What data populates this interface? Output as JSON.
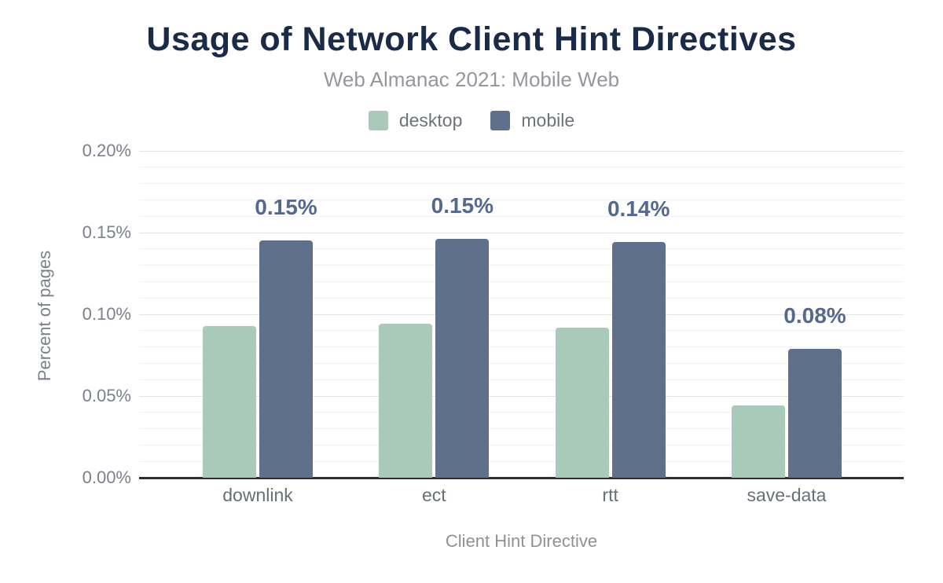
{
  "chart_data": {
    "type": "bar",
    "title": "Usage of Network Client Hint Directives",
    "subtitle": "Web Almanac 2021: Mobile Web",
    "xlabel": "Client Hint Directive",
    "ylabel": "Percent of pages",
    "categories": [
      "downlink",
      "ect",
      "rtt",
      "save-data"
    ],
    "series": [
      {
        "name": "desktop",
        "color": "#a9cab9",
        "values": [
          0.093,
          0.094,
          0.092,
          0.044
        ]
      },
      {
        "name": "mobile",
        "color": "#5e708c",
        "values": [
          0.145,
          0.146,
          0.144,
          0.079
        ],
        "data_labels": [
          "0.15%",
          "0.15%",
          "0.14%",
          "0.08%"
        ]
      }
    ],
    "ylim": [
      0,
      0.2
    ],
    "yticks": {
      "values": [
        0,
        0.05,
        0.1,
        0.15,
        0.2
      ],
      "labels": [
        "0.00%",
        "0.05%",
        "0.10%",
        "0.15%",
        "0.20%"
      ]
    },
    "minor_grid_step": 0.01,
    "grid": "major+minor",
    "legend_position": "top",
    "style": {
      "title_color": "#1a2b49",
      "subtitle_color": "#95979c",
      "data_label_color": "#55688e",
      "axis_line_color": "#2c2e30"
    }
  }
}
